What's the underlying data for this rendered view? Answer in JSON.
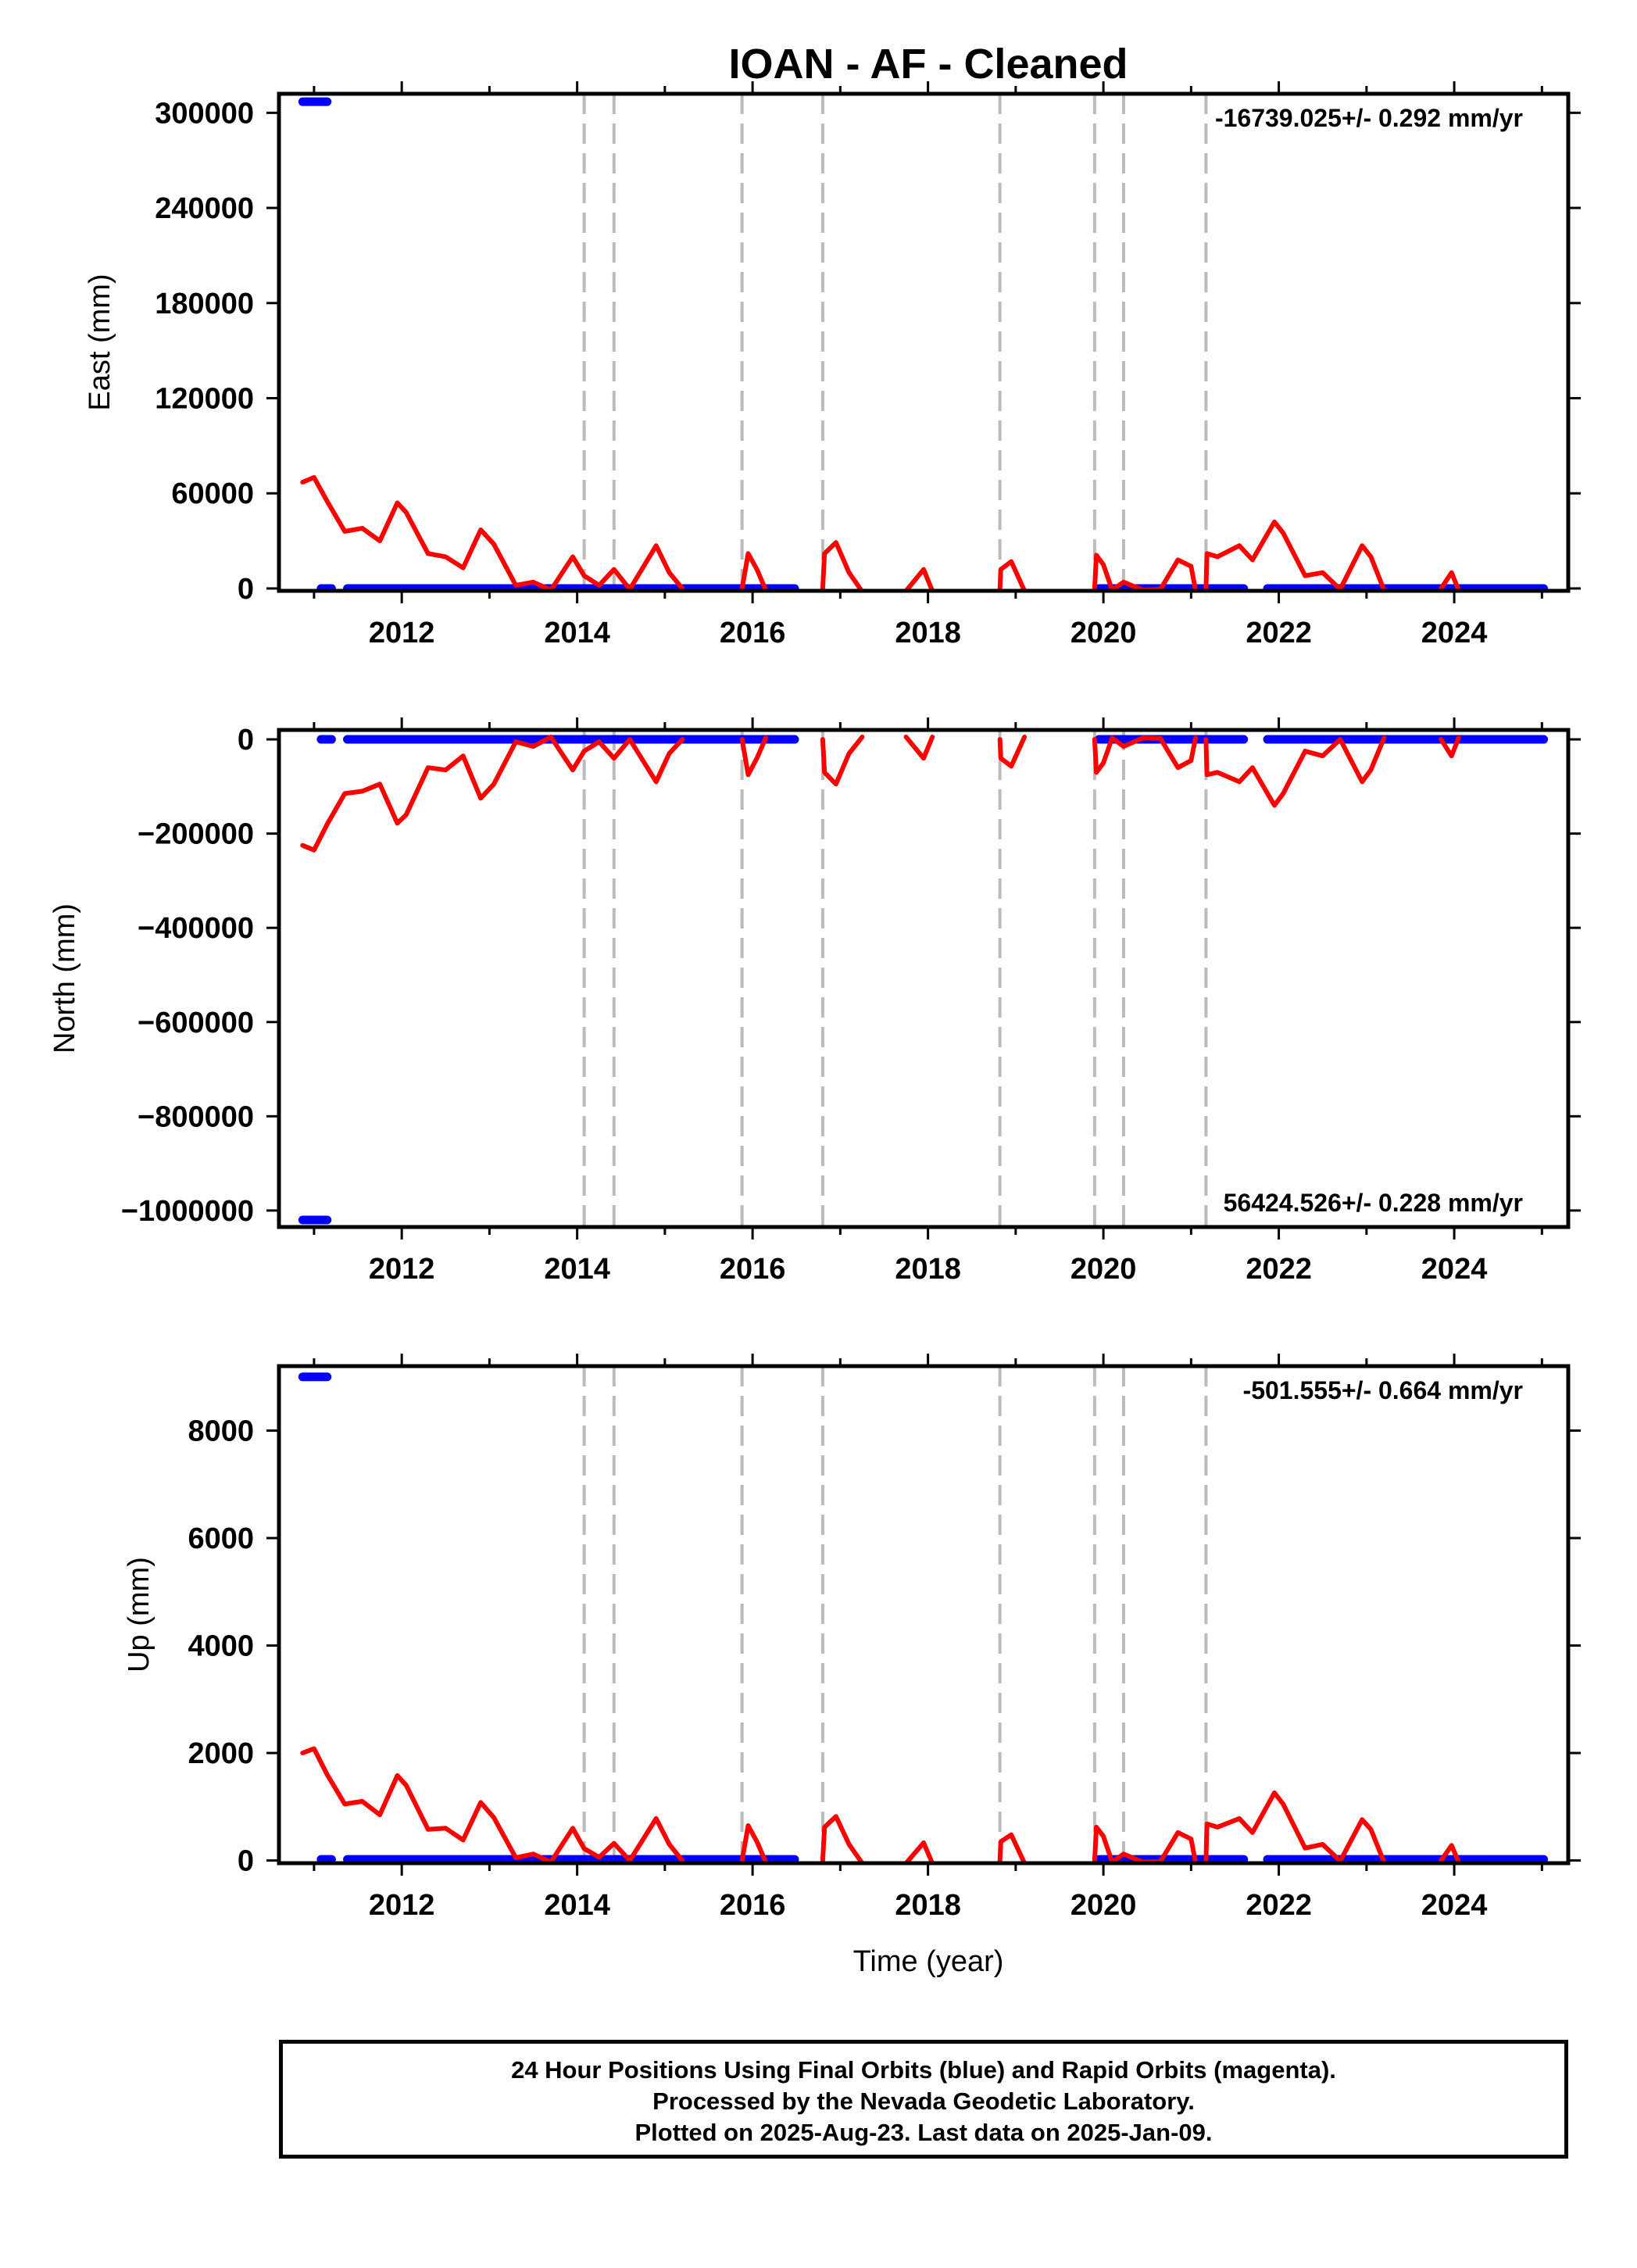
{
  "title": "IOAN  - AF - Cleaned",
  "xlabel": "Time (year)",
  "x_ticks": [
    2012,
    2014,
    2016,
    2018,
    2020,
    2022,
    2024
  ],
  "colors": {
    "final": "#0000ff",
    "model": "#ff0000",
    "events": "#bbbbbb"
  },
  "footer": {
    "line1": "24 Hour Positions Using Final Orbits (blue) and Rapid Orbits (magenta).",
    "line2": "Processed by the Nevada Geodetic Laboratory.",
    "line3": "Plotted on 2025-Aug-23. Last data on 2025-Jan-09."
  },
  "chart_data": [
    {
      "type": "scatter",
      "panel": "East",
      "ylabel": "East (mm)",
      "rate_text": "-16739.025+/- 0.292 mm/yr",
      "rate_position": "top-right",
      "xlim": [
        2010.6,
        2025.3
      ],
      "ylim": [
        -1500,
        312000
      ],
      "yticks": [
        0,
        60000,
        120000,
        180000,
        240000,
        300000
      ],
      "event_lines": [
        2014.08,
        2014.42,
        2015.88,
        2016.8,
        2018.82,
        2019.9,
        2020.23,
        2021.17
      ],
      "final_orbits": [
        {
          "x0": 2010.87,
          "x1": 2011.15,
          "y": 307000
        },
        {
          "x0": 2011.08,
          "x1": 2011.2,
          "y": 0
        },
        {
          "x0": 2011.38,
          "x1": 2016.48,
          "y": 0
        },
        {
          "x0": 2019.95,
          "x1": 2021.6,
          "y": 0
        },
        {
          "x0": 2021.87,
          "x1": 2025.02,
          "y": 0
        }
      ],
      "model_segments": [
        [
          [
            2010.87,
            67000
          ],
          [
            2011.0,
            70000
          ],
          [
            2011.15,
            55000
          ],
          [
            2011.35,
            36000
          ],
          [
            2011.55,
            38000
          ],
          [
            2011.75,
            30000
          ],
          [
            2011.95,
            54000
          ],
          [
            2012.05,
            48000
          ],
          [
            2012.3,
            22000
          ],
          [
            2012.5,
            20000
          ],
          [
            2012.7,
            13000
          ],
          [
            2012.9,
            37000
          ],
          [
            2013.05,
            28000
          ],
          [
            2013.3,
            2000
          ],
          [
            2013.5,
            4000
          ],
          [
            2013.7,
            -1000
          ],
          [
            2013.95,
            20000
          ],
          [
            2014.08,
            8000
          ]
        ],
        [
          [
            2014.08,
            8000
          ],
          [
            2014.25,
            2000
          ],
          [
            2014.42,
            12000
          ],
          [
            2014.6,
            -500
          ],
          [
            2014.9,
            27000
          ],
          [
            2015.05,
            10000
          ],
          [
            2015.2,
            0
          ]
        ],
        [
          [
            2015.88,
            0
          ],
          [
            2015.95,
            22000
          ],
          [
            2016.05,
            12000
          ],
          [
            2016.15,
            -1000
          ]
        ],
        [
          [
            2016.8,
            0
          ],
          [
            2016.82,
            22000
          ],
          [
            2016.95,
            29000
          ],
          [
            2017.1,
            10000
          ],
          [
            2017.25,
            -2000
          ]
        ],
        [
          [
            2017.75,
            -1500
          ],
          [
            2017.95,
            12000
          ],
          [
            2018.05,
            -1500
          ]
        ],
        [
          [
            2018.82,
            0
          ],
          [
            2018.83,
            12000
          ],
          [
            2018.95,
            17000
          ],
          [
            2019.1,
            -1500
          ]
        ],
        [
          [
            2019.9,
            0
          ],
          [
            2019.92,
            21000
          ],
          [
            2020.0,
            15000
          ],
          [
            2020.1,
            -1000
          ],
          [
            2020.23,
            4000
          ],
          [
            2020.45,
            -1000
          ],
          [
            2020.65,
            -500
          ],
          [
            2020.85,
            18000
          ],
          [
            2021.0,
            14000
          ],
          [
            2021.05,
            -1000
          ]
        ],
        [
          [
            2021.17,
            0
          ],
          [
            2021.18,
            22000
          ],
          [
            2021.3,
            20000
          ],
          [
            2021.55,
            27000
          ],
          [
            2021.7,
            18000
          ],
          [
            2021.95,
            42000
          ],
          [
            2022.05,
            35000
          ],
          [
            2022.3,
            8000
          ],
          [
            2022.5,
            10000
          ],
          [
            2022.7,
            -500
          ],
          [
            2022.95,
            27000
          ],
          [
            2023.05,
            20000
          ],
          [
            2023.2,
            -1000
          ]
        ],
        [
          [
            2023.85,
            0
          ],
          [
            2023.97,
            10000
          ],
          [
            2024.05,
            -1000
          ]
        ]
      ]
    },
    {
      "type": "scatter",
      "panel": "North",
      "ylabel": "North (mm)",
      "rate_text": "56424.526+/- 0.228 mm/yr",
      "rate_position": "bottom-right",
      "xlim": [
        2010.6,
        2025.3
      ],
      "ylim": [
        -1035000,
        20000
      ],
      "yticks": [
        0,
        -200000,
        -400000,
        -600000,
        -800000,
        -1000000
      ],
      "ytick_labels": [
        "0",
        "−200000",
        "−400000",
        "−600000",
        "−800000",
        "−1000000"
      ],
      "event_lines": [
        2014.08,
        2014.42,
        2015.88,
        2016.8,
        2018.82,
        2019.9,
        2020.23,
        2021.17
      ],
      "final_orbits": [
        {
          "x0": 2010.87,
          "x1": 2011.15,
          "y": -1020000
        },
        {
          "x0": 2011.08,
          "x1": 2011.2,
          "y": 0
        },
        {
          "x0": 2011.38,
          "x1": 2016.48,
          "y": 0
        },
        {
          "x0": 2019.95,
          "x1": 2021.6,
          "y": 0
        },
        {
          "x0": 2021.87,
          "x1": 2025.02,
          "y": 0
        }
      ],
      "model_segments": [
        [
          [
            2010.87,
            -225000
          ],
          [
            2011.0,
            -235000
          ],
          [
            2011.15,
            -180000
          ],
          [
            2011.35,
            -115000
          ],
          [
            2011.55,
            -110000
          ],
          [
            2011.75,
            -95000
          ],
          [
            2011.95,
            -178000
          ],
          [
            2012.05,
            -160000
          ],
          [
            2012.3,
            -60000
          ],
          [
            2012.5,
            -65000
          ],
          [
            2012.7,
            -35000
          ],
          [
            2012.9,
            -125000
          ],
          [
            2013.05,
            -95000
          ],
          [
            2013.3,
            -5000
          ],
          [
            2013.5,
            -15000
          ],
          [
            2013.7,
            5000
          ],
          [
            2013.95,
            -65000
          ],
          [
            2014.08,
            -25000
          ]
        ],
        [
          [
            2014.08,
            -25000
          ],
          [
            2014.25,
            -5000
          ],
          [
            2014.42,
            -40000
          ],
          [
            2014.6,
            0
          ],
          [
            2014.9,
            -90000
          ],
          [
            2015.05,
            -30000
          ],
          [
            2015.2,
            0
          ]
        ],
        [
          [
            2015.88,
            0
          ],
          [
            2015.95,
            -75000
          ],
          [
            2016.05,
            -40000
          ],
          [
            2016.15,
            3000
          ]
        ],
        [
          [
            2016.8,
            0
          ],
          [
            2016.82,
            -70000
          ],
          [
            2016.95,
            -95000
          ],
          [
            2017.1,
            -30000
          ],
          [
            2017.25,
            5000
          ]
        ],
        [
          [
            2017.75,
            5000
          ],
          [
            2017.95,
            -40000
          ],
          [
            2018.05,
            5000
          ]
        ],
        [
          [
            2018.82,
            0
          ],
          [
            2018.83,
            -40000
          ],
          [
            2018.95,
            -57000
          ],
          [
            2019.1,
            5000
          ]
        ],
        [
          [
            2019.9,
            0
          ],
          [
            2019.92,
            -70000
          ],
          [
            2020.0,
            -50000
          ],
          [
            2020.1,
            3000
          ],
          [
            2020.23,
            -15000
          ],
          [
            2020.45,
            3000
          ],
          [
            2020.65,
            2000
          ],
          [
            2020.85,
            -60000
          ],
          [
            2021.0,
            -45000
          ],
          [
            2021.05,
            3000
          ]
        ],
        [
          [
            2021.17,
            0
          ],
          [
            2021.18,
            -75000
          ],
          [
            2021.3,
            -70000
          ],
          [
            2021.55,
            -90000
          ],
          [
            2021.7,
            -60000
          ],
          [
            2021.95,
            -140000
          ],
          [
            2022.05,
            -115000
          ],
          [
            2022.3,
            -25000
          ],
          [
            2022.5,
            -35000
          ],
          [
            2022.7,
            0
          ],
          [
            2022.95,
            -90000
          ],
          [
            2023.05,
            -65000
          ],
          [
            2023.2,
            3000
          ]
        ],
        [
          [
            2023.85,
            0
          ],
          [
            2023.97,
            -35000
          ],
          [
            2024.05,
            3000
          ]
        ]
      ]
    },
    {
      "type": "scatter",
      "panel": "Up",
      "ylabel": "Up (mm)",
      "rate_text": "-501.555+/- 0.664 mm/yr",
      "rate_position": "top-right",
      "xlim": [
        2010.6,
        2025.3
      ],
      "ylim": [
        -50,
        9200
      ],
      "yticks": [
        0,
        2000,
        4000,
        6000,
        8000
      ],
      "event_lines": [
        2014.08,
        2014.42,
        2015.88,
        2016.8,
        2018.82,
        2019.9,
        2020.23,
        2021.17
      ],
      "final_orbits": [
        {
          "x0": 2010.87,
          "x1": 2011.15,
          "y": 9000
        },
        {
          "x0": 2011.08,
          "x1": 2011.2,
          "y": 20
        },
        {
          "x0": 2011.38,
          "x1": 2016.48,
          "y": 20
        },
        {
          "x0": 2019.95,
          "x1": 2021.6,
          "y": 20
        },
        {
          "x0": 2021.87,
          "x1": 2025.02,
          "y": 20
        }
      ],
      "model_segments": [
        [
          [
            2010.87,
            2000
          ],
          [
            2011.0,
            2080
          ],
          [
            2011.15,
            1600
          ],
          [
            2011.35,
            1050
          ],
          [
            2011.55,
            1100
          ],
          [
            2011.75,
            850
          ],
          [
            2011.95,
            1580
          ],
          [
            2012.05,
            1400
          ],
          [
            2012.3,
            580
          ],
          [
            2012.5,
            600
          ],
          [
            2012.7,
            380
          ],
          [
            2012.9,
            1080
          ],
          [
            2013.05,
            800
          ],
          [
            2013.3,
            50
          ],
          [
            2013.5,
            120
          ],
          [
            2013.7,
            -30
          ],
          [
            2013.95,
            600
          ],
          [
            2014.08,
            220
          ]
        ],
        [
          [
            2014.08,
            220
          ],
          [
            2014.25,
            60
          ],
          [
            2014.42,
            320
          ],
          [
            2014.6,
            0
          ],
          [
            2014.9,
            780
          ],
          [
            2015.05,
            300
          ],
          [
            2015.2,
            0
          ]
        ],
        [
          [
            2015.88,
            0
          ],
          [
            2015.95,
            650
          ],
          [
            2016.05,
            350
          ],
          [
            2016.15,
            -30
          ]
        ],
        [
          [
            2016.8,
            0
          ],
          [
            2016.82,
            620
          ],
          [
            2016.95,
            820
          ],
          [
            2017.1,
            300
          ],
          [
            2017.25,
            -50
          ]
        ],
        [
          [
            2017.75,
            -50
          ],
          [
            2017.95,
            330
          ],
          [
            2018.05,
            -50
          ]
        ],
        [
          [
            2018.82,
            0
          ],
          [
            2018.83,
            350
          ],
          [
            2018.95,
            480
          ],
          [
            2019.1,
            -50
          ]
        ],
        [
          [
            2019.9,
            0
          ],
          [
            2019.92,
            620
          ],
          [
            2020.0,
            450
          ],
          [
            2020.1,
            -30
          ],
          [
            2020.23,
            120
          ],
          [
            2020.45,
            -30
          ],
          [
            2020.65,
            -20
          ],
          [
            2020.85,
            520
          ],
          [
            2021.0,
            400
          ],
          [
            2021.05,
            -30
          ]
        ],
        [
          [
            2021.17,
            0
          ],
          [
            2021.18,
            680
          ],
          [
            2021.3,
            620
          ],
          [
            2021.55,
            780
          ],
          [
            2021.7,
            520
          ],
          [
            2021.95,
            1260
          ],
          [
            2022.05,
            1050
          ],
          [
            2022.3,
            230
          ],
          [
            2022.5,
            300
          ],
          [
            2022.7,
            -10
          ],
          [
            2022.95,
            760
          ],
          [
            2023.05,
            580
          ],
          [
            2023.2,
            -30
          ]
        ],
        [
          [
            2023.85,
            0
          ],
          [
            2023.97,
            280
          ],
          [
            2024.05,
            -30
          ]
        ]
      ]
    }
  ]
}
